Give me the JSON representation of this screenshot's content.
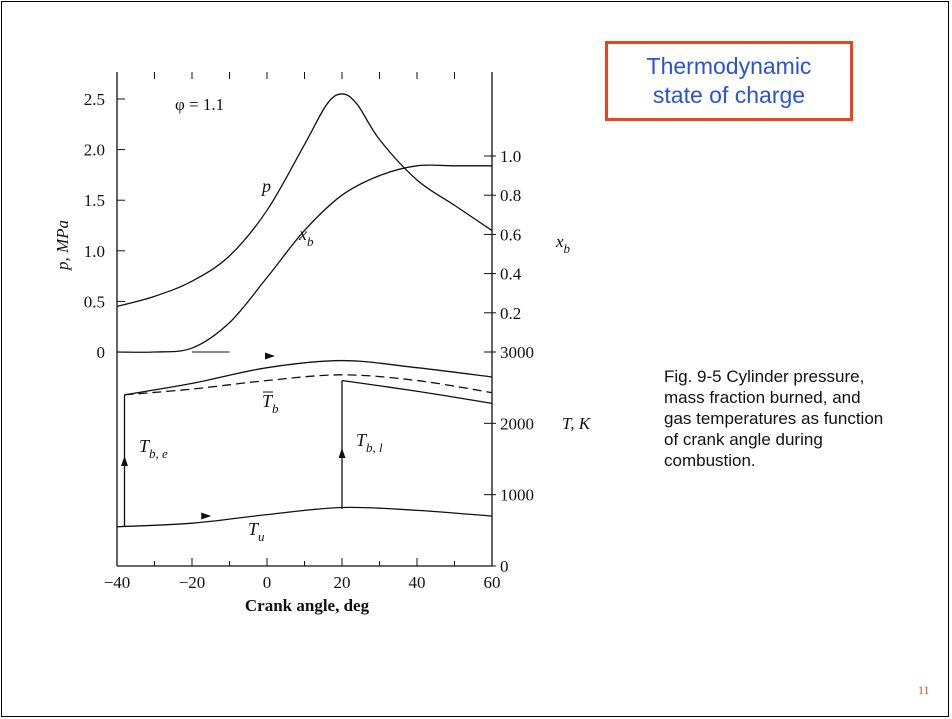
{
  "slide": {
    "title_lines": [
      "Thermodynamic",
      "state of charge"
    ],
    "caption_lines": [
      "Fig. 9-5 Cylinder pressure,",
      "mass fraction burned, and",
      "gas temperatures as function",
      "of crank angle during",
      "combustion."
    ],
    "page_number": "11"
  },
  "colors": {
    "title_border": "#e8451e",
    "title_text": "#2a52d6",
    "page_number": "#c05030"
  },
  "chart_data": {
    "type": "line",
    "annotation": "φ = 1.1",
    "xlabel": "Crank angle, deg",
    "xlim": [
      -40,
      60
    ],
    "x_ticks": [
      "−40",
      "−20",
      "0",
      "20",
      "40",
      "60"
    ],
    "left_axis": {
      "label": "p, MPa",
      "ylim": [
        0,
        2.5
      ],
      "ticks": [
        "0",
        "0.5",
        "1.0",
        "1.5",
        "2.0",
        "2.5"
      ]
    },
    "right_axis_xb": {
      "label": "x",
      "label_sub": "b",
      "ylim": [
        0.2,
        1.0
      ],
      "ticks": [
        "0.2",
        "0.4",
        "0.6",
        "0.8",
        "1.0"
      ]
    },
    "right_axis_T": {
      "label": "T, K",
      "ylim": [
        0,
        3000
      ],
      "ticks": [
        "0",
        "1000",
        "2000",
        "3000"
      ]
    },
    "series": [
      {
        "name": "p",
        "x": [
          -40,
          -30,
          -20,
          -10,
          0,
          10,
          16,
          20,
          24,
          30,
          40,
          50,
          60
        ],
        "values": [
          0.45,
          0.55,
          0.7,
          0.95,
          1.4,
          2.05,
          2.45,
          2.55,
          2.45,
          2.1,
          1.7,
          1.45,
          1.2
        ]
      },
      {
        "name": "x",
        "name_sub": "b",
        "x": [
          -40,
          -30,
          -20,
          -10,
          0,
          10,
          20,
          30,
          40,
          50,
          60
        ],
        "values": [
          0.0,
          0.0,
          0.02,
          0.15,
          0.38,
          0.62,
          0.8,
          0.9,
          0.95,
          0.95,
          0.95
        ]
      },
      {
        "name": "T",
        "name_sub": "u",
        "x": [
          -40,
          -20,
          0,
          20,
          40,
          60
        ],
        "values": [
          550,
          600,
          720,
          820,
          780,
          700
        ]
      },
      {
        "name": "T",
        "name_sub": "b",
        "x": [
          -38,
          -20,
          0,
          20,
          40,
          60
        ],
        "values": [
          2400,
          2480,
          2600,
          2680,
          2600,
          2430
        ]
      },
      {
        "name": "T",
        "name_sub": "b, e",
        "x": [
          -38,
          -38,
          -20,
          0,
          20,
          40,
          60
        ],
        "values": [
          550,
          2400,
          2560,
          2780,
          2880,
          2780,
          2650
        ]
      },
      {
        "name": "T",
        "name_sub": "b, l",
        "x": [
          20,
          20,
          40,
          60
        ],
        "values": [
          800,
          2600,
          2450,
          2280
        ]
      }
    ]
  }
}
